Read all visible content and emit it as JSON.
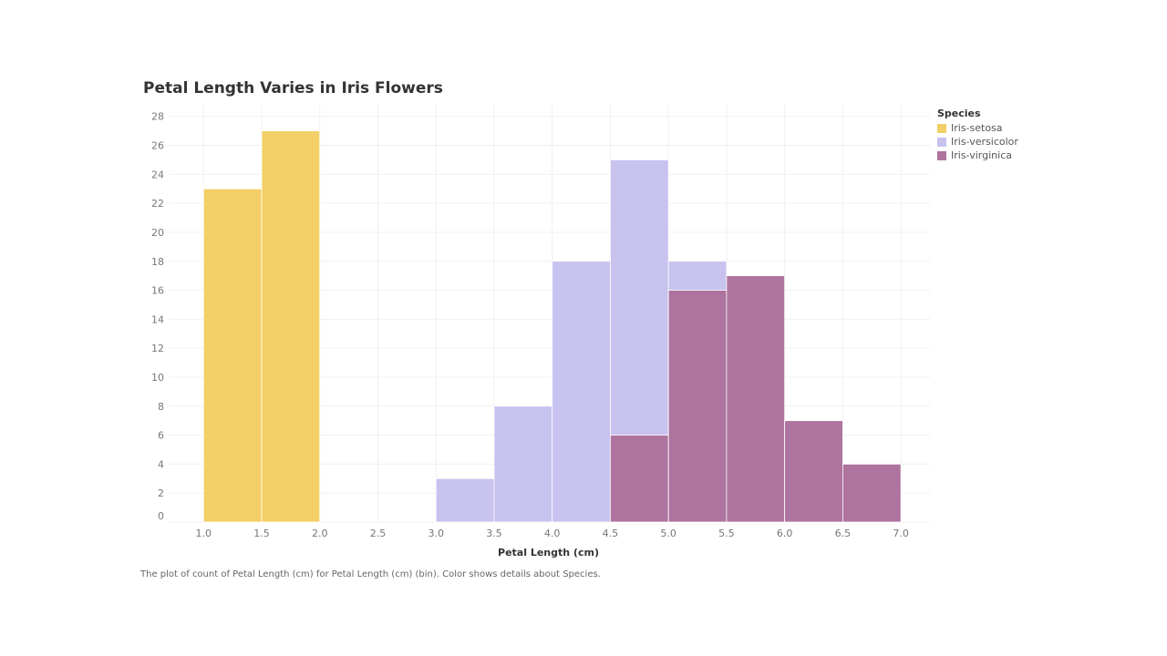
{
  "chart_data": {
    "type": "bar",
    "title": "Petal Length Varies in Iris Flowers",
    "xlabel": "Petal Length (cm)",
    "ylabel": "",
    "xlim": [
      0.7,
      7.25
    ],
    "ylim": [
      0,
      28.8
    ],
    "x_ticks": [
      "1.0",
      "1.5",
      "2.0",
      "2.5",
      "3.0",
      "3.5",
      "4.0",
      "4.5",
      "5.0",
      "5.5",
      "6.0",
      "6.5",
      "7.0"
    ],
    "y_ticks": [
      0,
      2,
      4,
      6,
      8,
      10,
      12,
      14,
      16,
      18,
      20,
      22,
      24,
      26,
      28
    ],
    "bin_width": 0.5,
    "grid": true,
    "legend_title": "Species",
    "legend_placement": "top-right",
    "series": [
      {
        "name": "Iris-setosa",
        "color": "#f2cf67",
        "bins": [
          {
            "x": 1.0,
            "y": 23
          },
          {
            "x": 1.5,
            "y": 27
          }
        ]
      },
      {
        "name": "Iris-versicolor",
        "color": "#c7c2ee",
        "bins": [
          {
            "x": 3.0,
            "y": 3
          },
          {
            "x": 3.5,
            "y": 8
          },
          {
            "x": 4.0,
            "y": 18
          },
          {
            "x": 4.5,
            "y": 25
          },
          {
            "x": 5.0,
            "y": 18
          }
        ]
      },
      {
        "name": "Iris-virginica",
        "color": "#ae739e",
        "bins": [
          {
            "x": 4.5,
            "y": 6
          },
          {
            "x": 5.0,
            "y": 16
          },
          {
            "x": 5.5,
            "y": 17
          },
          {
            "x": 6.0,
            "y": 7
          },
          {
            "x": 6.5,
            "y": 4
          }
        ]
      }
    ]
  },
  "caption": "The plot of count of Petal Length (cm) for Petal Length (cm) (bin).  Color shows details about Species."
}
